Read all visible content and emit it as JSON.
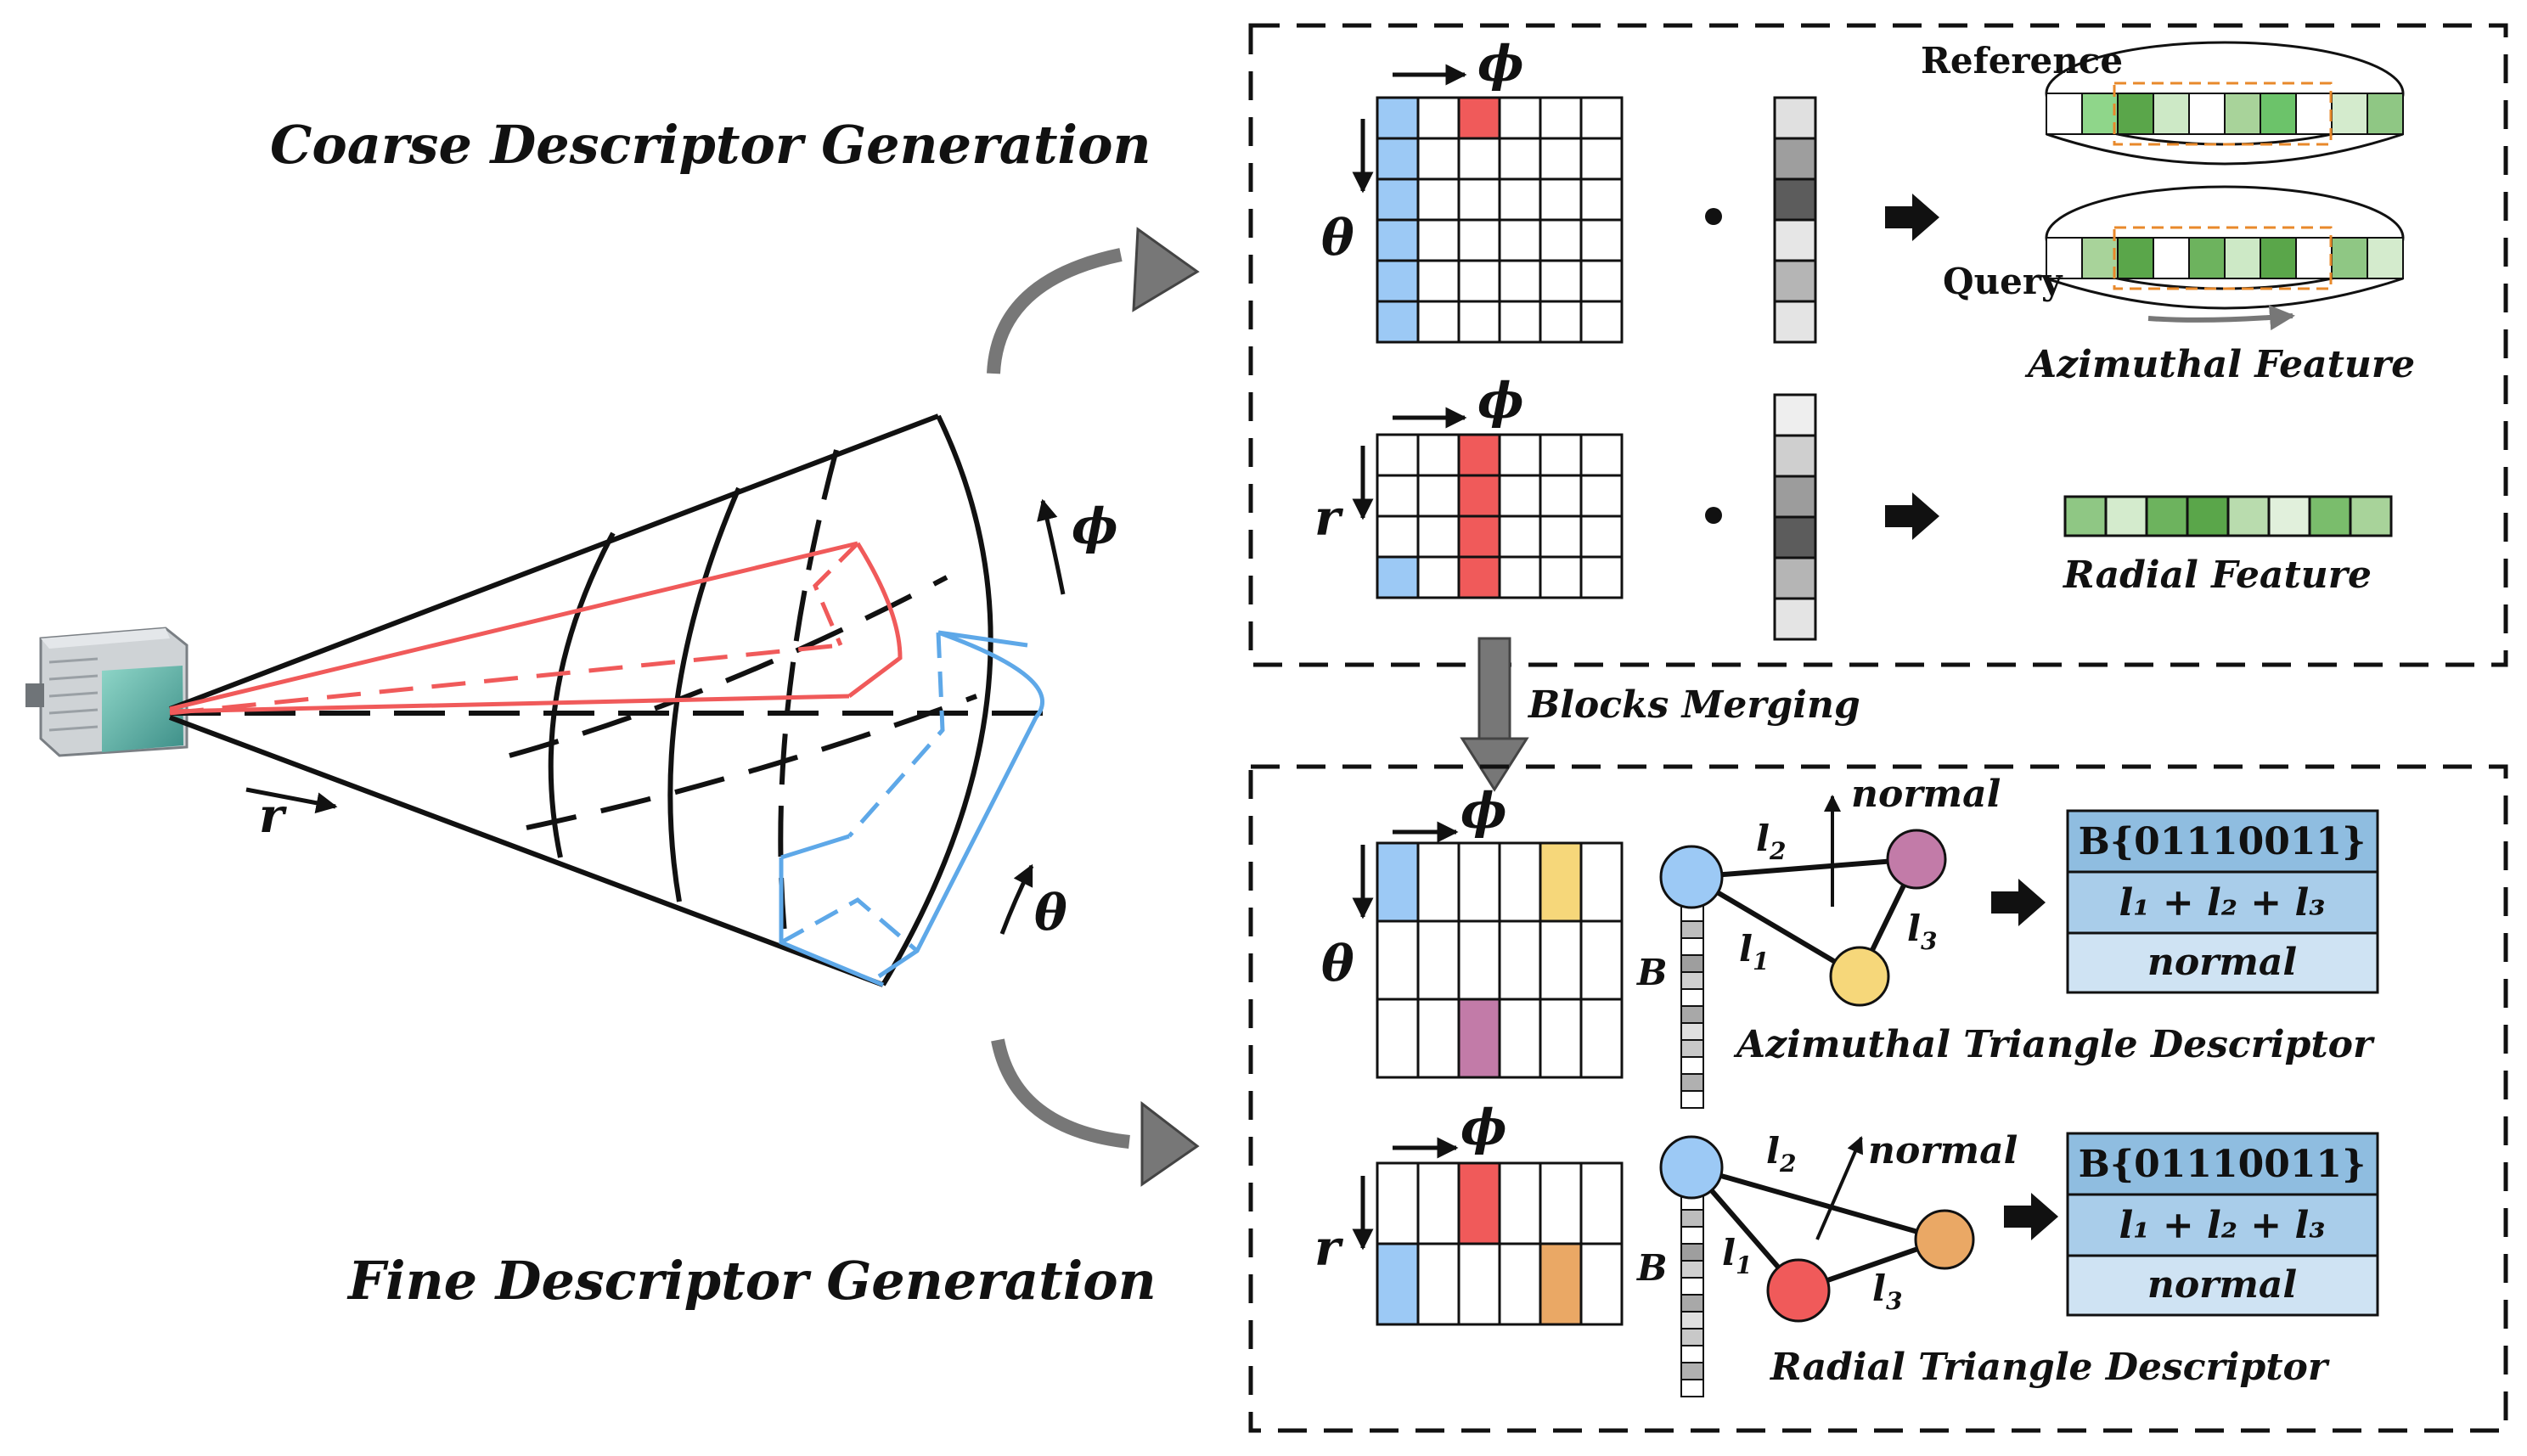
{
  "titles": {
    "coarse": "Coarse Descriptor Generation",
    "fine": "Fine Descriptor Generation"
  },
  "labels": {
    "reference": "Reference",
    "query": "Query",
    "azimuthal_feature": "Azimuthal Feature",
    "radial_feature": "Radial Feature",
    "blocks_merging": "Blocks Merging",
    "azimuthal_triangle": "Azimuthal Triangle Descriptor",
    "radial_triangle": "Radial Triangle Descriptor",
    "normal": "normal"
  },
  "symbols": {
    "phi": "ϕ",
    "theta": "θ",
    "r": "r",
    "B": "B",
    "l1": "l",
    "l2": "l",
    "l3": "l",
    "sub1": "1",
    "sub2": "2",
    "sub3": "3"
  },
  "descriptor_box": {
    "row1": "B{01110011}",
    "row2": "l₁ + l₂ + l₃",
    "row3": "normal"
  },
  "colors": {
    "red": "#f05a5a",
    "blue": "#9cc9f5",
    "yellow": "#f6d77a",
    "purple": "#c27ba8",
    "orange": "#eaa865",
    "green_dark": "#5aa64a",
    "green_light": "#a8d39a",
    "box_dark": "#8fbde0",
    "box_light": "#cfe3f3"
  },
  "icons": {
    "lidar": "lidar-sensor-icon"
  }
}
